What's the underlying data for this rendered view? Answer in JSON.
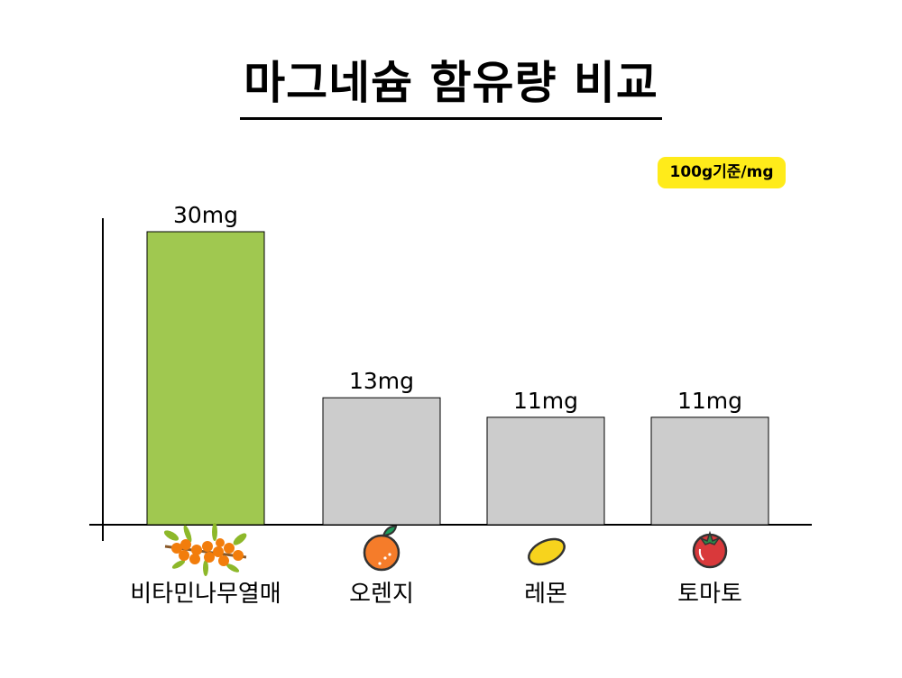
{
  "title": "마그네슘 함유량 비교",
  "unit_badge": "100g기준/mg",
  "colors": {
    "highlight": "#a0c850",
    "default": "#cccccc",
    "badge": "#ffeb1a"
  },
  "chart_data": {
    "type": "bar",
    "title": "마그네슘 함유량 비교",
    "categories": [
      "비타민나무열매",
      "오렌지",
      "레몬",
      "토마토"
    ],
    "values": [
      30,
      13,
      11,
      11
    ],
    "data_labels": [
      "30mg",
      "13mg",
      "11mg",
      "11mg"
    ],
    "icons": [
      "sea-buckthorn-icon",
      "orange-icon",
      "lemon-icon",
      "tomato-icon"
    ],
    "xlabel": "",
    "ylabel": "",
    "ylim": [
      0,
      30
    ],
    "grid": false,
    "legend": "none"
  }
}
